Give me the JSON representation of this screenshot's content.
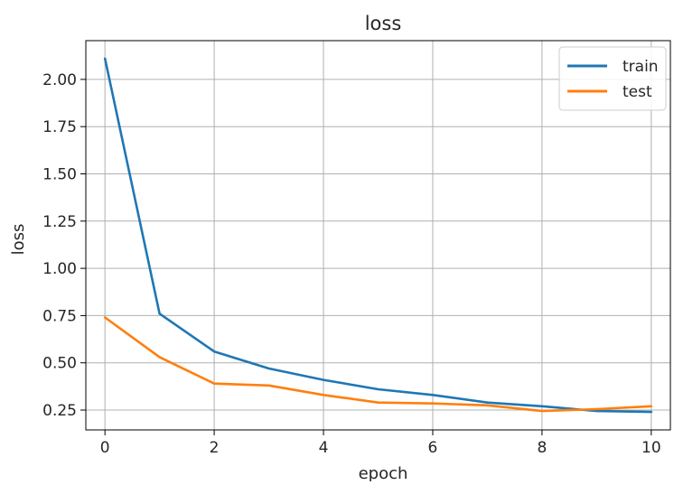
{
  "chart_data": {
    "type": "line",
    "title": "loss",
    "xlabel": "epoch",
    "ylabel": "loss",
    "xlim": [
      -0.35,
      10.35
    ],
    "ylim": [
      0.145,
      2.205
    ],
    "xticks": [
      0,
      2,
      4,
      6,
      8,
      10
    ],
    "xtick_labels": [
      "0",
      "2",
      "4",
      "6",
      "8",
      "10"
    ],
    "yticks": [
      0.25,
      0.5,
      0.75,
      1.0,
      1.25,
      1.5,
      1.75,
      2.0
    ],
    "ytick_labels": [
      "0.25",
      "0.50",
      "0.75",
      "1.00",
      "1.25",
      "1.50",
      "1.75",
      "2.00"
    ],
    "grid": true,
    "legend_position": "top-right",
    "x": [
      0,
      1,
      2,
      3,
      4,
      5,
      6,
      7,
      8,
      9,
      10
    ],
    "series": [
      {
        "name": "train",
        "color": "#1f77b4",
        "values": [
          2.11,
          0.76,
          0.56,
          0.47,
          0.41,
          0.36,
          0.33,
          0.29,
          0.27,
          0.245,
          0.24
        ]
      },
      {
        "name": "test",
        "color": "#ff7f0e",
        "values": [
          0.74,
          0.53,
          0.39,
          0.38,
          0.33,
          0.29,
          0.285,
          0.275,
          0.245,
          0.255,
          0.27
        ]
      }
    ]
  }
}
